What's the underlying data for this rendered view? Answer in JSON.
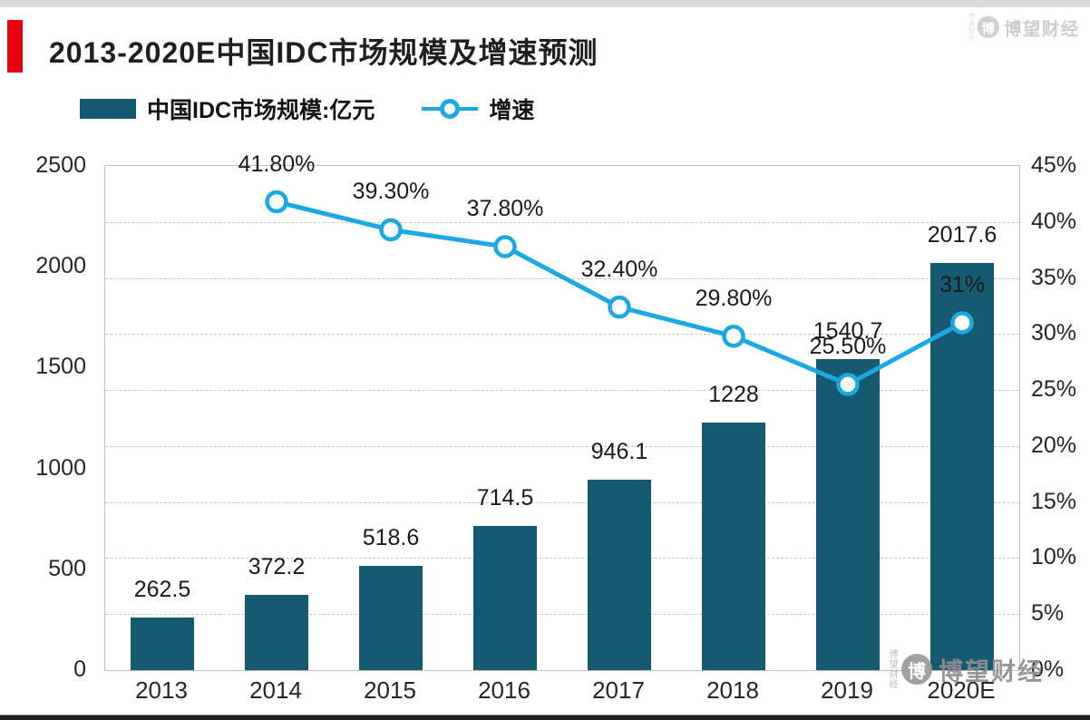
{
  "header": {
    "title": "2013-2020E中国IDC市场规模及增速预测"
  },
  "legend": {
    "bar_label": "中国IDC市场规模:亿元",
    "line_label": "增速"
  },
  "watermark": {
    "text": "博望财经",
    "logo_glyph": "博"
  },
  "colors": {
    "bar": "#155A70",
    "line": "#1BA8E3",
    "accent": "#E60012",
    "grid": "#C8C8C8",
    "axis_border": "#C0C0C0"
  },
  "chart_data": {
    "type": "bar",
    "subtype": "bar+line combo",
    "title": "2013-2020E中国IDC市场规模及增速预测",
    "categories": [
      "2013",
      "2014",
      "2015",
      "2016",
      "2017",
      "2018",
      "2019",
      "2020E"
    ],
    "series": [
      {
        "name": "中国IDC市场规模:亿元",
        "type": "bar",
        "axis": "left",
        "values": [
          262.5,
          372.2,
          518.6,
          714.5,
          946.1,
          1228,
          1540.7,
          2017.6
        ],
        "labels": [
          "262.5",
          "372.2",
          "518.6",
          "714.5",
          "946.1",
          "1228",
          "1540.7",
          "2017.6"
        ]
      },
      {
        "name": "增速",
        "type": "line",
        "axis": "right",
        "x": [
          "2014",
          "2015",
          "2016",
          "2017",
          "2018",
          "2019",
          "2020E"
        ],
        "values": [
          41.8,
          39.3,
          37.8,
          32.4,
          29.8,
          25.5,
          31
        ],
        "labels": [
          "41.80%",
          "39.30%",
          "37.80%",
          "32.40%",
          "29.80%",
          "25.50%",
          "31%"
        ]
      }
    ],
    "left_axis": {
      "min": 0,
      "max": 2500,
      "tick_labels": [
        "0",
        "500",
        "1000",
        "1500",
        "2000",
        "2500"
      ]
    },
    "right_axis": {
      "min": 0,
      "max": 45,
      "tick_labels": [
        "0%",
        "5%",
        "10%",
        "15%",
        "20%",
        "25%",
        "30%",
        "35%",
        "40%",
        "45%"
      ]
    },
    "grid": {
      "horizontal": true,
      "style": "dashed",
      "step_percent": 5
    },
    "legend_position": "top"
  }
}
